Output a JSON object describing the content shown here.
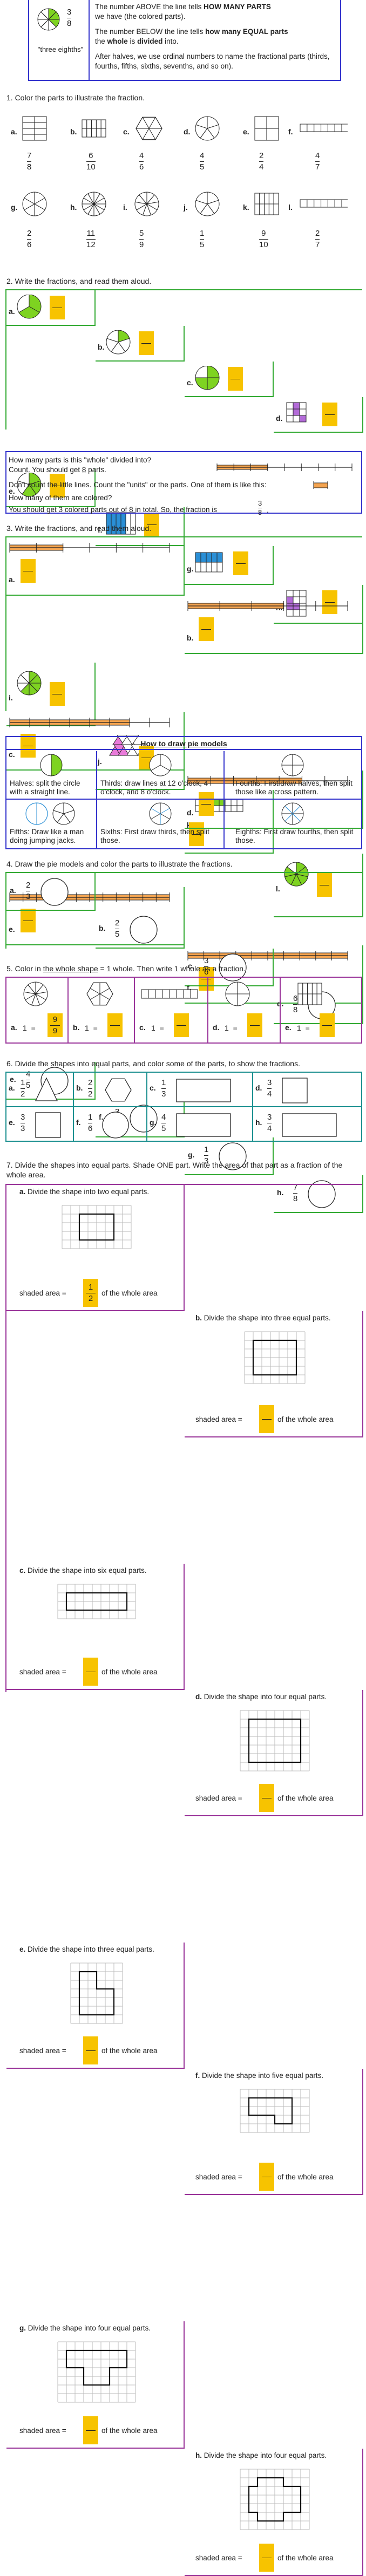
{
  "intro": {
    "fraction": {
      "num": "3",
      "den": "8"
    },
    "caption": "\"three eighths\"",
    "above_1": "The number ABOVE the line tells ",
    "above_2": "HOW MANY PARTS",
    "above_3": "we have (the colored parts).",
    "below_1": "The number BELOW the line tells ",
    "below_2": "how many EQUAL parts",
    "below_3": "the ",
    "below_4": "whole",
    "below_5": " is ",
    "below_6": "divided",
    "below_7": " into.",
    "halves": "After halves, we use ordinal numbers to name the fractional parts (thirds, fourths, fifths, sixths, sevenths, and so on)."
  },
  "q1": {
    "title": "1. Color the parts to illustrate the fraction.",
    "items": [
      {
        "l": "a.",
        "n": "7",
        "d": "8"
      },
      {
        "l": "b.",
        "n": "6",
        "d": "10"
      },
      {
        "l": "c.",
        "n": "4",
        "d": "6"
      },
      {
        "l": "d.",
        "n": "4",
        "d": "5"
      },
      {
        "l": "e.",
        "n": "2",
        "d": "4"
      },
      {
        "l": "f.",
        "n": "4",
        "d": "7"
      },
      {
        "l": "g.",
        "n": "2",
        "d": "6"
      },
      {
        "l": "h.",
        "n": "11",
        "d": "12"
      },
      {
        "l": "i.",
        "n": "5",
        "d": "9"
      },
      {
        "l": "j.",
        "n": "1",
        "d": "5"
      },
      {
        "l": "k.",
        "n": "9",
        "d": "10"
      },
      {
        "l": "l.",
        "n": "2",
        "d": "7"
      }
    ]
  },
  "q2": {
    "title": "2. Write the fractions, and read them aloud.",
    "labels": [
      "a.",
      "b.",
      "c.",
      "d.",
      "e.",
      "f.",
      "g.",
      "h.",
      "i.",
      "j.",
      "k.",
      "l."
    ]
  },
  "info2": {
    "l1": "How many parts is this \"whole\" divided into?",
    "l2a": "Count. You should get ",
    "l2b": "8",
    "l2c": " parts.",
    "l3": "Don't count the little lines. Count the \"units\" or the parts. One of them is like this:",
    "l4": "How many of them are colored?",
    "l5a": "You should get 3 colored parts out of 8 in total. So, the fraction is",
    "l5n": "3",
    "l5d": "8",
    "l5e": "."
  },
  "q3": {
    "title": "3. Write the fractions, and read them aloud.",
    "labels": [
      "a.",
      "b.",
      "c.",
      "d.",
      "e.",
      "f."
    ]
  },
  "pie": {
    "title": "How to draw pie models",
    "cells": [
      "Halves: split the circle with a straight line.",
      "Thirds: draw lines at 12 o'clock, 4 o'clock, and 8 o'clock.",
      "Fourths: First draw halves, then split those like a cross pattern.",
      "Fifths: Draw like a man doing jumping jacks.",
      "Sixths: First draw thirds, then split those.",
      "Eighths: First draw fourths, then split those."
    ]
  },
  "q4": {
    "title": "4. Draw the pie models and color the parts to illustrate the fractions.",
    "items": [
      {
        "l": "a.",
        "n": "2",
        "d": "3"
      },
      {
        "l": "b.",
        "n": "2",
        "d": "5"
      },
      {
        "l": "c.",
        "n": "3",
        "d": "6"
      },
      {
        "l": "d.",
        "n": "6",
        "d": "8"
      },
      {
        "l": "e.",
        "n": "4",
        "d": "5"
      },
      {
        "l": "f.",
        "n": "3",
        "d": "8"
      },
      {
        "l": "g.",
        "n": "1",
        "d": "3"
      },
      {
        "l": "h.",
        "n": "7",
        "d": "8"
      }
    ]
  },
  "q5": {
    "title_a": "5. Color in ",
    "title_b": "the whole shape",
    "title_c": " = 1 whole. Then write 1 whole as a fraction.",
    "eq": "1  =",
    "items": [
      {
        "l": "a.",
        "n": "9",
        "d": "9"
      },
      {
        "l": "b.",
        "n": "",
        "d": ""
      },
      {
        "l": "c.",
        "n": "",
        "d": ""
      },
      {
        "l": "d.",
        "n": "",
        "d": ""
      },
      {
        "l": "e.",
        "n": "",
        "d": ""
      }
    ]
  },
  "q6": {
    "title": "6. Divide the shapes into equal parts, and color some of the parts, to show the fractions.",
    "items": [
      {
        "l": "a.",
        "n": "1",
        "d": "2"
      },
      {
        "l": "b.",
        "n": "2",
        "d": "2"
      },
      {
        "l": "c.",
        "n": "1",
        "d": "3"
      },
      {
        "l": "d.",
        "n": "3",
        "d": "4"
      },
      {
        "l": "e.",
        "n": "3",
        "d": "3"
      },
      {
        "l": "f.",
        "n": "1",
        "d": "6"
      },
      {
        "l": "g.",
        "n": "4",
        "d": "5"
      },
      {
        "l": "h.",
        "n": "3",
        "d": "4"
      }
    ]
  },
  "q7": {
    "title": "7. Divide the shapes into equal parts. Shade ONE part. Write the area of that part as a fraction of the whole area.",
    "shaded": "shaded area =",
    "ofwhole": "of the whole area",
    "items": [
      {
        "l": "a.",
        "t": "Divide the shape into two equal parts.",
        "n": "1",
        "d": "2"
      },
      {
        "l": "b.",
        "t": "Divide the shape into three equal parts.",
        "n": "",
        "d": ""
      },
      {
        "l": "c.",
        "t": "Divide the shape into six equal parts.",
        "n": "",
        "d": ""
      },
      {
        "l": "d.",
        "t": "Divide the shape into four equal parts.",
        "n": "",
        "d": ""
      },
      {
        "l": "e.",
        "t": "Divide the shape into three equal parts.",
        "n": "",
        "d": ""
      },
      {
        "l": "f.",
        "t": "Divide the shape into five equal parts.",
        "n": "",
        "d": ""
      },
      {
        "l": "g.",
        "t": "Divide the shape into four equal parts.",
        "n": "",
        "d": ""
      },
      {
        "l": "h.",
        "t": "Divide the shape into four equal parts.",
        "n": "",
        "d": ""
      }
    ]
  },
  "colors": {
    "green": "#7ed321",
    "orange": "#f4a450",
    "yellow": "#f7c300",
    "purple": "#b36bd8",
    "blue": "#2a8fd6",
    "pink": "#e87ad9"
  }
}
